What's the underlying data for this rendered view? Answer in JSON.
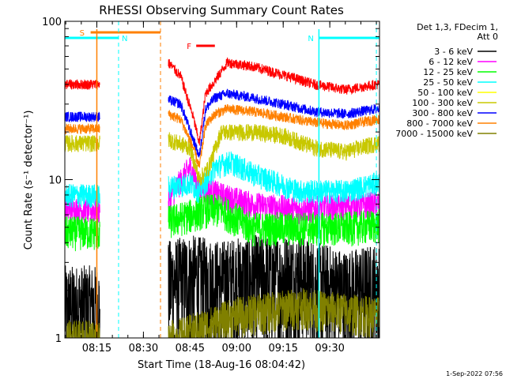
{
  "chart_data": {
    "type": "line",
    "title": "RHESSI Observing Summary Count Rates",
    "xlabel": "Start Time (18-Aug-16 08:04:42)",
    "ylabel": "Count Rate (s⁻¹ detector⁻¹)",
    "yscale": "log",
    "xlim": [
      "08:04:42",
      "09:46:00"
    ],
    "ylim": [
      1,
      100
    ],
    "x_ticks": [
      "08:15",
      "08:30",
      "08:45",
      "09:00",
      "09:15",
      "09:30"
    ],
    "y_ticks": [
      "1",
      "10",
      "100"
    ],
    "legend_header": [
      "Det 1,3, FDecim 1,",
      "Att 0"
    ],
    "legend_placement": "right",
    "timestamp": "1-Sep-2022 07:56",
    "flags": [
      {
        "label": "S",
        "color": "#ff8000",
        "start": "08:13:00",
        "end": "08:35:30",
        "row": 1
      },
      {
        "label": "N",
        "color": "#00ffff",
        "start": "08:04:42",
        "end": "08:22:00",
        "row": 2
      },
      {
        "label": "N",
        "color": "#00ffff",
        "start": "09:26:30",
        "end": "09:46:00",
        "row": 2
      },
      {
        "label": "F",
        "color": "#ff0000",
        "start": "08:47:00",
        "end": "08:53:00",
        "row": 3
      }
    ],
    "dashed_markers": [
      {
        "time": "08:22:00",
        "color": "#00ffff",
        "style": "dashed"
      },
      {
        "time": "08:35:30",
        "color": "#ff8000",
        "style": "dashed"
      },
      {
        "time": "09:45:00",
        "color": "#00ffff",
        "style": "dashed"
      }
    ],
    "solid_markers": [
      {
        "time": "08:15:00",
        "color": "#ff8000"
      },
      {
        "time": "09:26:30",
        "color": "#00ffff"
      }
    ],
    "data_gap": [
      "08:16:00",
      "08:38:00"
    ],
    "series": [
      {
        "name": "3 - 6 keV",
        "color": "#000000",
        "times": [
          "08:04:42",
          "08:16:00",
          "08:38:00",
          "08:45:00",
          "08:55:00",
          "09:05:00",
          "09:20:00",
          "09:35:00",
          "09:45:00"
        ],
        "values": [
          1.6,
          1.6,
          2.3,
          2.5,
          2.3,
          2.5,
          2.5,
          2.0,
          2.2
        ]
      },
      {
        "name": "6 - 12 keV",
        "color": "#ff00ff",
        "times": [
          "08:04:42",
          "08:16:00",
          "08:38:00",
          "08:45:00",
          "08:48:00",
          "08:55:00",
          "09:05:00",
          "09:20:00",
          "09:35:00",
          "09:45:00"
        ],
        "values": [
          6.5,
          6.5,
          7.5,
          12,
          9,
          8,
          7,
          6.5,
          6.8,
          7
        ]
      },
      {
        "name": "12 - 25 keV",
        "color": "#00ff00",
        "times": [
          "08:04:42",
          "08:16:00",
          "08:38:00",
          "08:45:00",
          "08:50:00",
          "08:55:00",
          "09:05:00",
          "09:20:00",
          "09:35:00",
          "09:45:00"
        ],
        "values": [
          4.7,
          4.7,
          5.5,
          6.0,
          6.5,
          6.5,
          5.0,
          5.0,
          5.0,
          5.2
        ]
      },
      {
        "name": "25 - 50 keV",
        "color": "#00ffff",
        "times": [
          "08:04:42",
          "08:16:00",
          "08:38:00",
          "08:45:00",
          "08:48:00",
          "08:53:00",
          "08:58:00",
          "09:05:00",
          "09:20:00",
          "09:35:00",
          "09:45:00"
        ],
        "values": [
          8.0,
          8.0,
          9.0,
          9.5,
          8.5,
          12,
          13,
          11,
          8.5,
          8.5,
          9.5
        ]
      },
      {
        "name": "50 - 100 keV",
        "color": "#ffff00",
        "times": [
          "08:04:42",
          "08:16:00"
        ],
        "values": [
          1.0,
          1.0
        ]
      },
      {
        "name": "100 - 300 keV",
        "color": "#c8c800",
        "times": [
          "08:04:42",
          "08:16:00",
          "08:38:00",
          "08:45:00",
          "08:48:00",
          "08:51:00",
          "08:55:00",
          "09:05:00",
          "09:15:00",
          "09:25:00",
          "09:35:00",
          "09:45:00"
        ],
        "values": [
          17,
          17,
          18,
          16,
          10,
          12,
          20,
          20,
          19,
          16,
          15,
          17
        ]
      },
      {
        "name": "300 - 800 keV",
        "color": "#0000ff",
        "times": [
          "08:04:42",
          "08:16:00",
          "08:38:00",
          "08:42:00",
          "08:46:00",
          "08:48:00",
          "08:50:00",
          "08:53:00",
          "08:57:00",
          "09:05:00",
          "09:15:00",
          "09:25:00",
          "09:35:00",
          "09:45:00"
        ],
        "values": [
          25,
          25,
          32,
          30,
          18,
          14,
          28,
          33,
          35,
          33,
          30,
          27,
          26,
          28
        ]
      },
      {
        "name": "800 - 7000 keV",
        "color": "#ff8000",
        "times": [
          "08:04:42",
          "08:16:00",
          "08:38:00",
          "08:42:00",
          "08:46:00",
          "08:48:00",
          "08:50:00",
          "08:53:00",
          "08:57:00",
          "09:05:00",
          "09:15:00",
          "09:25:00",
          "09:35:00",
          "09:45:00"
        ],
        "values": [
          21,
          21,
          26,
          24,
          16,
          12,
          22,
          26,
          28,
          27,
          25,
          23,
          22,
          24
        ]
      },
      {
        "name": "7000 - 15000 keV",
        "color": "#808000",
        "times": [
          "08:04:42",
          "08:16:00",
          "08:40:00",
          "09:00:00",
          "09:20:00",
          "09:45:00"
        ],
        "values": [
          1.0,
          1.0,
          1.0,
          1.4,
          1.6,
          1.4
        ]
      }
    ],
    "peak_series_overlay": {
      "name": "red-upper",
      "color": "#ff0000",
      "times": [
        "08:04:42",
        "08:16:00",
        "08:38:00",
        "08:42:00",
        "08:46:00",
        "08:48:00",
        "08:50:00",
        "08:53:00",
        "08:57:00",
        "09:05:00",
        "09:15:00",
        "09:25:00",
        "09:35:00",
        "09:45:00"
      ],
      "values": [
        40,
        40,
        55,
        45,
        25,
        17,
        35,
        42,
        55,
        52,
        46,
        40,
        37,
        40
      ]
    }
  }
}
